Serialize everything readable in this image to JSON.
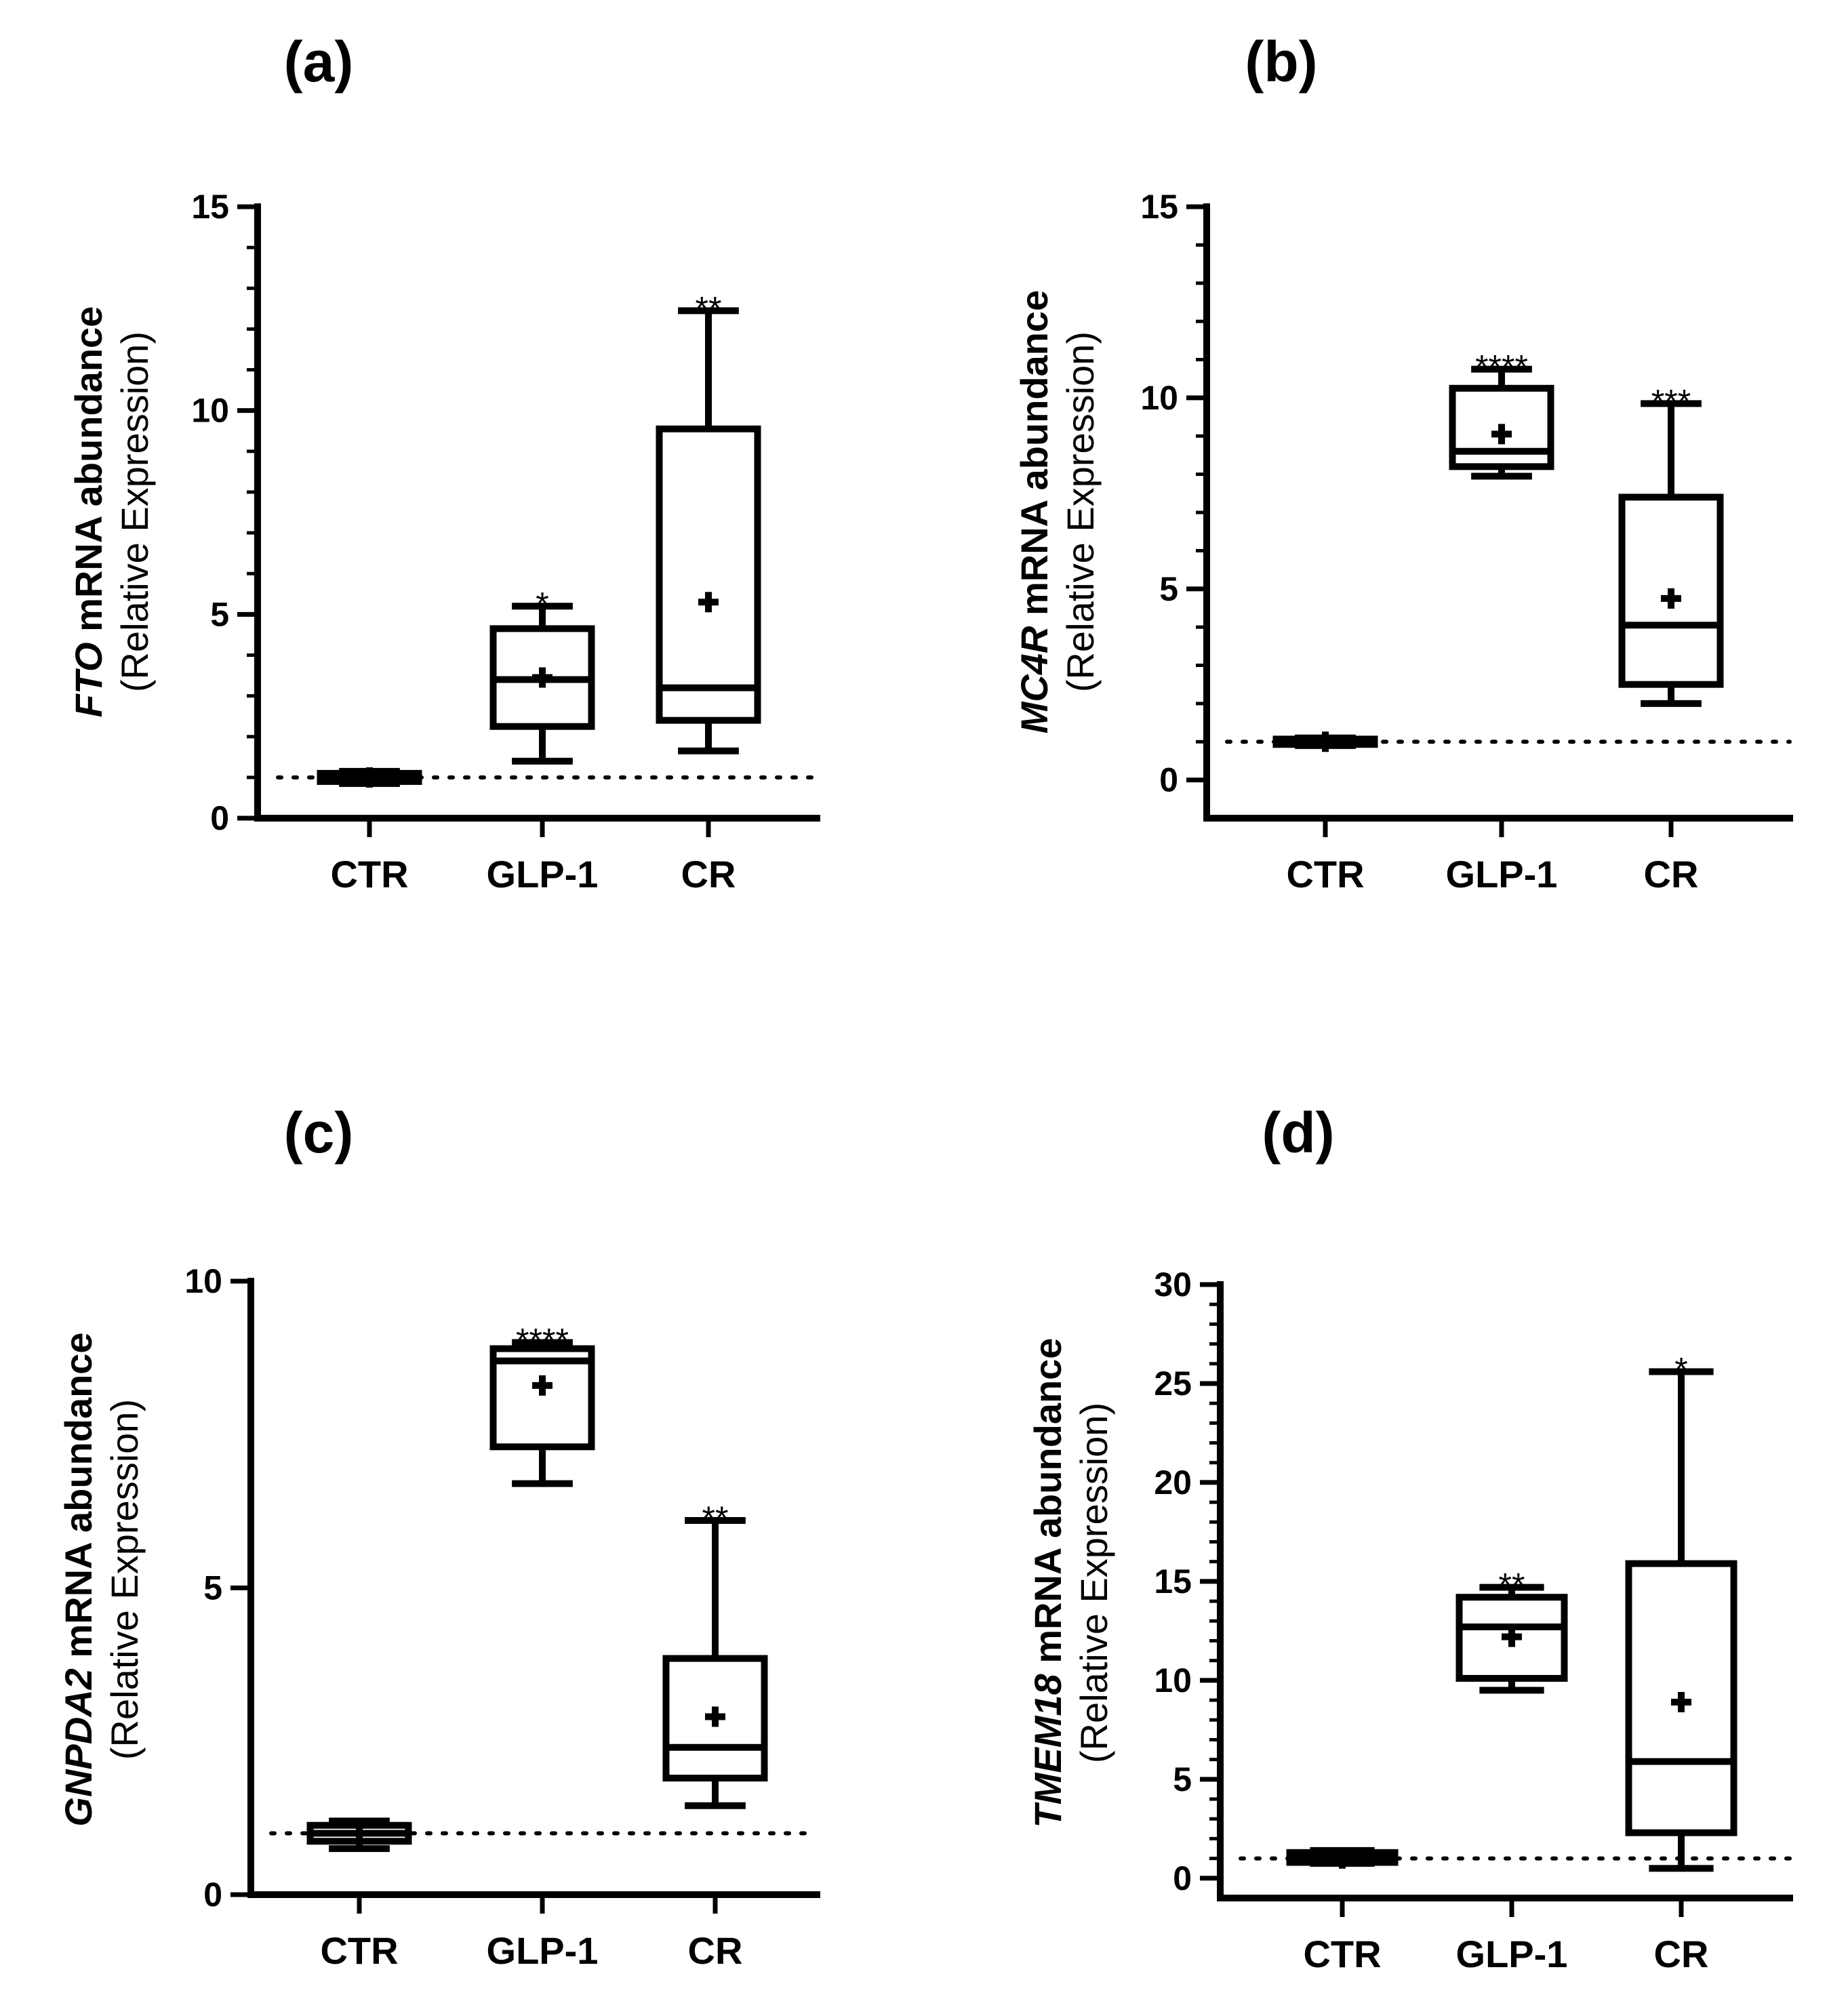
{
  "chart_data": [
    {
      "type": "box",
      "panel": "(a)",
      "gene": "FTO",
      "ylabel_main": "mRNA abundance",
      "ylabel_sub": "(Relative Expression)",
      "categories": [
        "CTR",
        "GLP-1",
        "CR"
      ],
      "ylim": [
        0,
        15
      ],
      "yticks": [
        0,
        5,
        10,
        15
      ],
      "yticks_labels": [
        "0",
        "5",
        "10",
        "15"
      ],
      "minor_step": 1,
      "reference_line": 1,
      "boxes": [
        {
          "category": "CTR",
          "min": 0.85,
          "q1": 0.9,
          "median": 1.0,
          "q3": 1.1,
          "max": 1.15,
          "mean": 1.0,
          "significance": ""
        },
        {
          "category": "GLP-1",
          "min": 1.4,
          "q1": 2.25,
          "median": 3.4,
          "q3": 4.65,
          "max": 5.2,
          "mean": 3.45,
          "significance": "*"
        },
        {
          "category": "CR",
          "min": 1.65,
          "q1": 2.4,
          "median": 3.2,
          "q3": 9.55,
          "max": 12.45,
          "mean": 5.3,
          "significance": "**"
        }
      ]
    },
    {
      "type": "box",
      "panel": "(b)",
      "gene": "MC4R",
      "ylabel_main": "mRNA abundance",
      "ylabel_sub": "(Relative Expression)",
      "categories": [
        "CTR",
        "GLP-1",
        "CR"
      ],
      "ylim": [
        -1,
        15
      ],
      "yticks": [
        0,
        5,
        10,
        15
      ],
      "yticks_labels": [
        "0",
        "5",
        "10",
        "15"
      ],
      "minor_step": 1,
      "reference_line": 1,
      "boxes": [
        {
          "category": "CTR",
          "min": 0.9,
          "q1": 0.93,
          "median": 1.0,
          "q3": 1.07,
          "max": 1.1,
          "mean": 1.0,
          "significance": ""
        },
        {
          "category": "GLP-1",
          "min": 7.95,
          "q1": 8.2,
          "median": 8.6,
          "q3": 10.25,
          "max": 10.75,
          "mean": 9.05,
          "significance": "****"
        },
        {
          "category": "CR",
          "min": 2.0,
          "q1": 2.5,
          "median": 4.05,
          "q3": 7.4,
          "max": 9.85,
          "mean": 4.75,
          "significance": "***"
        }
      ]
    },
    {
      "type": "box",
      "panel": "(c)",
      "gene": "GNPDA2",
      "ylabel_main": "mRNA abundance",
      "ylabel_sub": "(Relative Expression)",
      "categories": [
        "CTR",
        "GLP-1",
        "CR"
      ],
      "ylim": [
        0,
        10
      ],
      "yticks": [
        0,
        5,
        10
      ],
      "yticks_labels": [
        "0",
        "5",
        "10"
      ],
      "minor_step": 0,
      "reference_line": 1,
      "boxes": [
        {
          "category": "CTR",
          "min": 0.75,
          "q1": 0.87,
          "median": 1.0,
          "q3": 1.13,
          "max": 1.2,
          "mean": 1.0,
          "significance": ""
        },
        {
          "category": "GLP-1",
          "min": 6.7,
          "q1": 7.3,
          "median": 8.7,
          "q3": 8.9,
          "max": 9.0,
          "mean": 8.3,
          "significance": "****"
        },
        {
          "category": "CR",
          "min": 1.45,
          "q1": 1.9,
          "median": 2.4,
          "q3": 3.85,
          "max": 6.1,
          "mean": 2.9,
          "significance": "**"
        }
      ]
    },
    {
      "type": "box",
      "panel": "(d)",
      "gene": "TMEM18",
      "ylabel_main": "mRNA abundance",
      "ylabel_sub": "(Relative Expression)",
      "categories": [
        "CTR",
        "GLP-1",
        "CR"
      ],
      "ylim": [
        -1,
        30
      ],
      "yticks": [
        0,
        5,
        10,
        15,
        20,
        25,
        30
      ],
      "yticks_labels": [
        "0",
        "5",
        "10",
        "15",
        "20",
        "25",
        "30"
      ],
      "minor_step": 1,
      "reference_line": 1,
      "boxes": [
        {
          "category": "CTR",
          "min": 0.75,
          "q1": 0.8,
          "median": 1.0,
          "q3": 1.3,
          "max": 1.4,
          "mean": 1.0,
          "significance": ""
        },
        {
          "category": "GLP-1",
          "min": 9.5,
          "q1": 10.1,
          "median": 12.7,
          "q3": 14.2,
          "max": 14.7,
          "mean": 12.2,
          "significance": "**"
        },
        {
          "category": "CR",
          "min": 0.5,
          "q1": 2.3,
          "median": 5.9,
          "q3": 15.9,
          "max": 25.6,
          "mean": 8.9,
          "significance": "*"
        }
      ]
    }
  ]
}
